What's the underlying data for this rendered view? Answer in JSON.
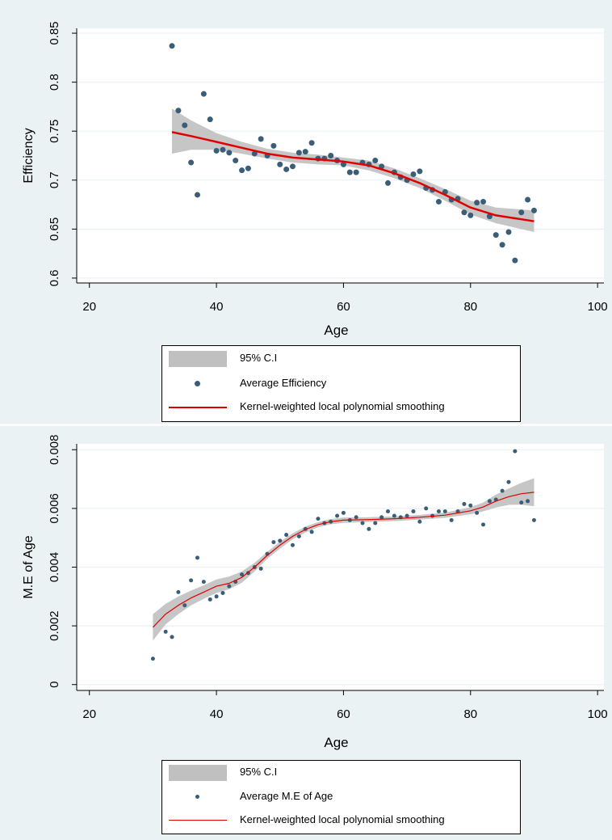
{
  "chart_data": [
    {
      "type": "scatter",
      "title": "",
      "xlabel": "Age",
      "ylabel": "Efficiency",
      "xlim": [
        18,
        101
      ],
      "ylim": [
        0.595,
        0.855
      ],
      "x_ticks": [
        20,
        40,
        60,
        80,
        100
      ],
      "y_ticks": [
        0.6,
        0.65,
        0.7,
        0.75,
        0.8,
        0.85
      ],
      "y_tick_labels": [
        "0.6",
        "0.65",
        "0.7",
        "0.75",
        "0.8",
        "0.85"
      ],
      "grid": true,
      "legend_position": "bottom",
      "legend": [
        "95% C.I",
        "Average Efficiency",
        "Kernel-weighted local polynomial smoothing"
      ],
      "series": [
        {
          "name": "Average Efficiency",
          "kind": "points",
          "x": [
            33,
            34,
            35,
            36,
            37,
            38,
            39,
            40,
            41,
            42,
            43,
            44,
            45,
            46,
            47,
            48,
            49,
            50,
            51,
            52,
            53,
            54,
            55,
            56,
            57,
            58,
            59,
            60,
            61,
            62,
            63,
            64,
            65,
            66,
            67,
            68,
            69,
            70,
            71,
            72,
            73,
            74,
            75,
            76,
            77,
            78,
            79,
            80,
            81,
            82,
            83,
            84,
            85,
            86,
            87,
            88,
            89,
            90
          ],
          "y": [
            0.837,
            0.771,
            0.756,
            0.718,
            0.685,
            0.788,
            0.762,
            0.73,
            0.731,
            0.728,
            0.72,
            0.71,
            0.712,
            0.727,
            0.742,
            0.725,
            0.735,
            0.716,
            0.711,
            0.714,
            0.728,
            0.729,
            0.738,
            0.722,
            0.722,
            0.725,
            0.72,
            0.716,
            0.708,
            0.708,
            0.718,
            0.716,
            0.72,
            0.714,
            0.697,
            0.708,
            0.703,
            0.7,
            0.706,
            0.709,
            0.692,
            0.69,
            0.678,
            0.688,
            0.68,
            0.681,
            0.667,
            0.664,
            0.677,
            0.678,
            0.663,
            0.644,
            0.634,
            0.647,
            0.618,
            0.667,
            0.68,
            0.669
          ],
          "color": "#3b5e78"
        },
        {
          "name": "Kernel-weighted local polynomial smoothing",
          "kind": "line",
          "x": [
            33,
            36,
            40,
            44,
            48,
            52,
            56,
            60,
            64,
            68,
            72,
            76,
            80,
            84,
            88,
            90
          ],
          "y": [
            0.749,
            0.745,
            0.739,
            0.733,
            0.727,
            0.723,
            0.721,
            0.719,
            0.715,
            0.707,
            0.697,
            0.685,
            0.672,
            0.664,
            0.66,
            0.658
          ],
          "color": "#e00000"
        },
        {
          "name": "95% C.I",
          "kind": "band",
          "x": [
            33,
            36,
            40,
            44,
            48,
            52,
            56,
            60,
            64,
            68,
            72,
            76,
            80,
            84,
            88,
            90
          ],
          "lower": [
            0.727,
            0.731,
            0.731,
            0.727,
            0.722,
            0.718,
            0.716,
            0.715,
            0.71,
            0.702,
            0.692,
            0.679,
            0.665,
            0.656,
            0.65,
            0.647
          ],
          "upper": [
            0.773,
            0.761,
            0.748,
            0.739,
            0.732,
            0.728,
            0.726,
            0.723,
            0.72,
            0.712,
            0.702,
            0.691,
            0.679,
            0.672,
            0.67,
            0.669
          ],
          "color": "#c0c0c0"
        }
      ]
    },
    {
      "type": "scatter",
      "title": "",
      "xlabel": "Age",
      "ylabel": "M.E of Age",
      "xlim": [
        18,
        101
      ],
      "ylim": [
        -0.0002,
        0.0082
      ],
      "x_ticks": [
        20,
        40,
        60,
        80,
        100
      ],
      "y_ticks": [
        0,
        0.002,
        0.004,
        0.006,
        0.008
      ],
      "y_tick_labels": [
        "0",
        "0.002",
        "0.004",
        "0.006",
        "0.008"
      ],
      "grid": true,
      "legend_position": "bottom",
      "legend": [
        "95% C.I",
        "Average M.E of Age",
        "Kernel-weighted local polynomial smoothing"
      ],
      "series": [
        {
          "name": "Average M.E of Age",
          "kind": "points",
          "x": [
            30,
            32,
            33,
            34,
            35,
            36,
            37,
            38,
            39,
            40,
            41,
            42,
            43,
            44,
            45,
            46,
            47,
            48,
            49,
            50,
            51,
            52,
            53,
            54,
            55,
            56,
            57,
            58,
            59,
            60,
            61,
            62,
            63,
            64,
            65,
            66,
            67,
            68,
            69,
            70,
            71,
            72,
            73,
            74,
            75,
            76,
            77,
            78,
            79,
            80,
            81,
            82,
            83,
            84,
            85,
            86,
            87,
            88,
            89,
            90
          ],
          "y": [
            0.00088,
            0.0018,
            0.00162,
            0.00315,
            0.0027,
            0.00355,
            0.00432,
            0.0035,
            0.0029,
            0.003,
            0.00312,
            0.00335,
            0.0035,
            0.00375,
            0.0038,
            0.004,
            0.00395,
            0.00445,
            0.00485,
            0.0049,
            0.0051,
            0.00475,
            0.00505,
            0.0053,
            0.0052,
            0.00565,
            0.0055,
            0.00555,
            0.00575,
            0.00585,
            0.0056,
            0.0057,
            0.0055,
            0.0053,
            0.0055,
            0.0057,
            0.0059,
            0.00575,
            0.0057,
            0.00575,
            0.0059,
            0.00555,
            0.006,
            0.00575,
            0.0059,
            0.0059,
            0.0056,
            0.0059,
            0.00615,
            0.0061,
            0.00585,
            0.00545,
            0.00625,
            0.0063,
            0.0066,
            0.0069,
            0.00795,
            0.0062,
            0.00625,
            0.0056
          ],
          "color": "#3b5e78"
        },
        {
          "name": "Kernel-weighted local polynomial smoothing",
          "kind": "line",
          "x": [
            30,
            32,
            34,
            36,
            38,
            40,
            42,
            44,
            46,
            48,
            50,
            52,
            54,
            56,
            58,
            60,
            64,
            68,
            72,
            76,
            80,
            82,
            84,
            86,
            88,
            90
          ],
          "y": [
            0.00195,
            0.0024,
            0.0027,
            0.00295,
            0.00315,
            0.00335,
            0.00345,
            0.00365,
            0.004,
            0.0044,
            0.00475,
            0.00505,
            0.00528,
            0.00545,
            0.00555,
            0.0056,
            0.00562,
            0.00565,
            0.0057,
            0.00577,
            0.00592,
            0.00605,
            0.00625,
            0.0064,
            0.0065,
            0.00655
          ],
          "color": "#e00000"
        },
        {
          "name": "95% C.I",
          "kind": "band",
          "x": [
            30,
            32,
            34,
            36,
            38,
            40,
            42,
            44,
            46,
            48,
            50,
            52,
            54,
            56,
            58,
            60,
            64,
            68,
            72,
            76,
            80,
            82,
            84,
            86,
            88,
            90
          ],
          "lower": [
            0.0015,
            0.00205,
            0.0024,
            0.0027,
            0.00292,
            0.00312,
            0.00325,
            0.00347,
            0.00385,
            0.00428,
            0.00463,
            0.00495,
            0.00518,
            0.00536,
            0.00546,
            0.00551,
            0.00554,
            0.00557,
            0.00562,
            0.00568,
            0.0058,
            0.0059,
            0.00603,
            0.00612,
            0.00613,
            0.00607
          ],
          "upper": [
            0.0024,
            0.00275,
            0.003,
            0.0032,
            0.00338,
            0.00358,
            0.00368,
            0.00385,
            0.00415,
            0.00452,
            0.00487,
            0.00515,
            0.00538,
            0.00554,
            0.00564,
            0.00569,
            0.0057,
            0.00573,
            0.00578,
            0.00586,
            0.00604,
            0.0062,
            0.00647,
            0.00668,
            0.00687,
            0.00703
          ],
          "color": "#c0c0c0"
        }
      ]
    }
  ],
  "legends": [
    {
      "ci": "95% C.I",
      "points": "Average Efficiency",
      "line": "Kernel-weighted local polynomial smoothing"
    },
    {
      "ci": "95% C.I",
      "points": "Average M.E of Age",
      "line": "Kernel-weighted local polynomial smoothing"
    }
  ]
}
